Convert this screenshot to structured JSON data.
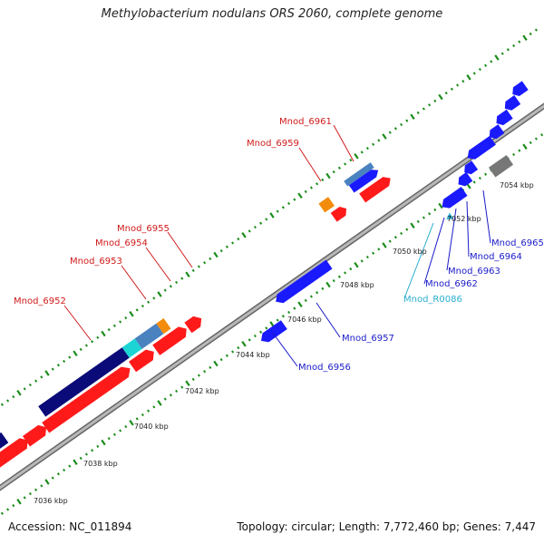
{
  "header": {
    "title": "Methylobacterium nodulans ORS 2060, complete genome"
  },
  "footer": {
    "accession": "Accession: NC_011894",
    "topology": "Topology: circular; Length: 7,772,460 bp; Genes: 7,447"
  },
  "colors": {
    "forward_gene": "#ff1a1a",
    "reverse_gene": "#1a1aff",
    "dark_gene": "#0a0a78",
    "cyan_gene": "#1dd4d4",
    "steel_gene": "#4a82c0",
    "orange_gene": "#f28c0a",
    "gray_gene": "#777777",
    "tick": "#1a8c1a",
    "label_forward": "#d11a1a",
    "label_reverse": "#1a1ac8",
    "label_rna": "#2aaed0",
    "backbone": "#888888"
  },
  "track": {
    "backbone_label": "genome backbone"
  },
  "scale": {
    "ticks": [
      {
        "label": "7036 kbp",
        "kbp": 7036
      },
      {
        "label": "7038 kbp",
        "kbp": 7038
      },
      {
        "label": "7040 kbp",
        "kbp": 7040
      },
      {
        "label": "7042 kbp",
        "kbp": 7042
      },
      {
        "label": "7044 kbp",
        "kbp": 7044
      },
      {
        "label": "7046 kbp",
        "kbp": 7046
      },
      {
        "label": "7048 kbp",
        "kbp": 7048
      },
      {
        "label": "7050 kbp",
        "kbp": 7050
      },
      {
        "label": "7052 kbp",
        "kbp": 7052
      },
      {
        "label": "7054 kbp",
        "kbp": 7054
      }
    ]
  },
  "features": [
    {
      "name": "Mnod_6952",
      "strand": "forward",
      "color": "dark_gene"
    },
    {
      "name": "Mnod_6953",
      "strand": "forward",
      "color": "cyan_gene"
    },
    {
      "name": "Mnod_6954",
      "strand": "forward",
      "color": "steel_gene"
    },
    {
      "name": "Mnod_6955",
      "strand": "forward",
      "color": "orange_gene"
    },
    {
      "name": "Mnod_6956",
      "strand": "reverse",
      "color": "reverse_gene"
    },
    {
      "name": "Mnod_6957",
      "strand": "reverse",
      "color": "reverse_gene"
    },
    {
      "name": "Mnod_6959",
      "strand": "forward",
      "color": "orange_gene"
    },
    {
      "name": "Mnod_6961",
      "strand": "forward",
      "color": "steel_gene"
    },
    {
      "name": "Mnod_R0086",
      "strand": "reverse",
      "color": "cyan_gene"
    },
    {
      "name": "Mnod_6962",
      "strand": "reverse",
      "color": "reverse_gene"
    },
    {
      "name": "Mnod_6963",
      "strand": "reverse",
      "color": "reverse_gene"
    },
    {
      "name": "Mnod_6964",
      "strand": "reverse",
      "color": "reverse_gene"
    },
    {
      "name": "Mnod_6965",
      "strand": "reverse",
      "color": "gray_gene"
    }
  ]
}
